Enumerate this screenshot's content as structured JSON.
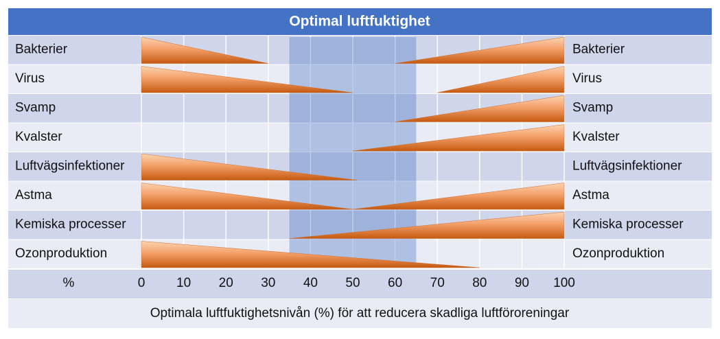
{
  "chart_data": {
    "type": "wedge",
    "title": "Optimal luftfuktighet",
    "categories": [
      "Bakterier",
      "Virus",
      "Svamp",
      "Kvalster",
      "Luftvägsinfektioner",
      "Astma",
      "Kemiska processer",
      "Ozonproduktion"
    ],
    "left_end": [
      30,
      50,
      null,
      null,
      51,
      50,
      null,
      80
    ],
    "right_start": [
      60,
      70,
      60,
      50,
      null,
      50,
      35,
      null
    ],
    "optimal_range": [
      35,
      65
    ],
    "xlim": [
      0,
      100
    ],
    "xticks": [
      0,
      10,
      20,
      30,
      40,
      50,
      60,
      70,
      80,
      90,
      100
    ],
    "unit_label": "%",
    "caption": "Optimala luftfuktighetsnivån (%) för att reducera skadliga luftföroreningar",
    "color": "#c55a11",
    "band_color": "#4472c4",
    "grid": true
  }
}
